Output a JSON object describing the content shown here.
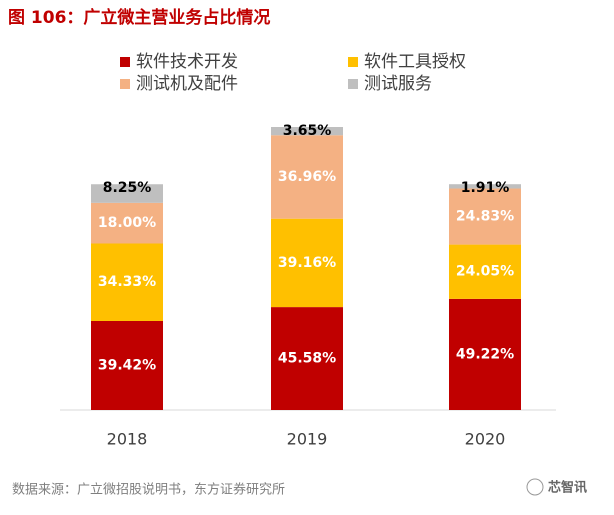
{
  "chart_data": {
    "type": "stacked_bar",
    "title": "图 106：广立微主营业务占比情况",
    "categories": [
      "2018",
      "2019",
      "2020"
    ],
    "series": [
      {
        "name": "软件技术开发",
        "color": "#c00000",
        "values": [
          39.42,
          45.58,
          49.22
        ],
        "value_labels": [
          "39.42%",
          "45.58%",
          "49.22%"
        ]
      },
      {
        "name": "软件工具授权",
        "color": "#ffc000",
        "values": [
          34.33,
          39.16,
          24.05
        ],
        "value_labels": [
          "34.33%",
          "39.16%",
          "24.05%"
        ]
      },
      {
        "name": "测试机及配件",
        "color": "#f4b183",
        "values": [
          18.0,
          36.96,
          24.83
        ],
        "value_labels": [
          "18.00%",
          "36.96%",
          "24.83%"
        ]
      },
      {
        "name": "测试服务",
        "color": "#bfbfbf",
        "values": [
          8.25,
          3.65,
          1.91
        ],
        "value_labels": [
          "8.25%",
          "3.65%",
          "1.91%"
        ]
      }
    ],
    "source": "数据来源：广立微招股说明书，东方证券研究所",
    "watermark": "芯智讯"
  }
}
